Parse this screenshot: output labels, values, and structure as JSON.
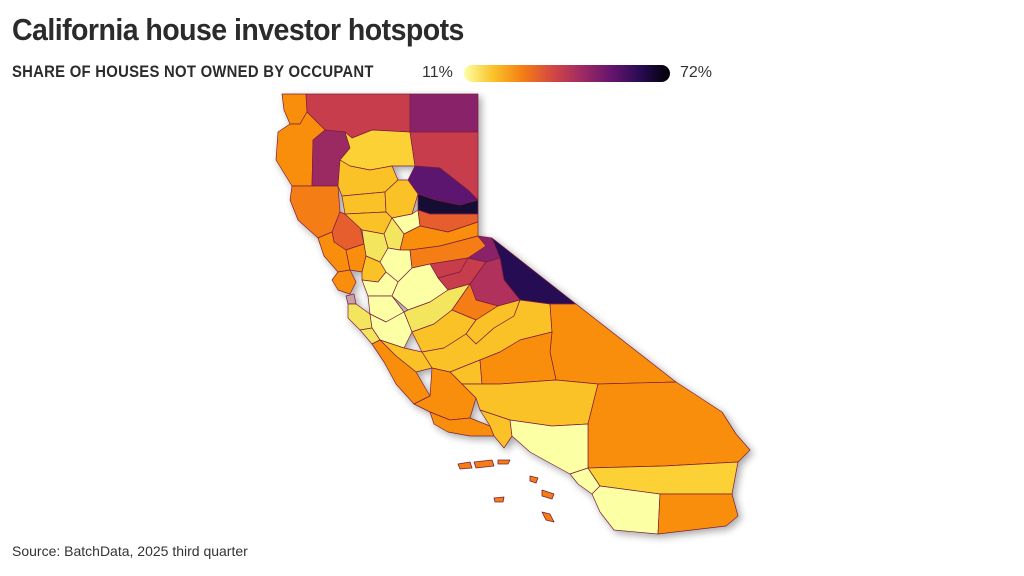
{
  "header": {
    "title": "California house investor hotspots",
    "subtitle": "SHARE OF HOUSES NOT OWNED BY OCCUPANT"
  },
  "legend": {
    "min_label": "11%",
    "max_label": "72%",
    "min_value": 11,
    "max_value": 72,
    "colors": [
      "#fcffa4",
      "#fac228",
      "#f57d15",
      "#d44842",
      "#9f2a63",
      "#65156e",
      "#280b53",
      "#000004"
    ]
  },
  "footer": {
    "source": "Source: BatchData, 2025 third quarter"
  },
  "map": {
    "type": "choropleth",
    "region": "California counties",
    "scale": "inferno (reversed)"
  }
}
